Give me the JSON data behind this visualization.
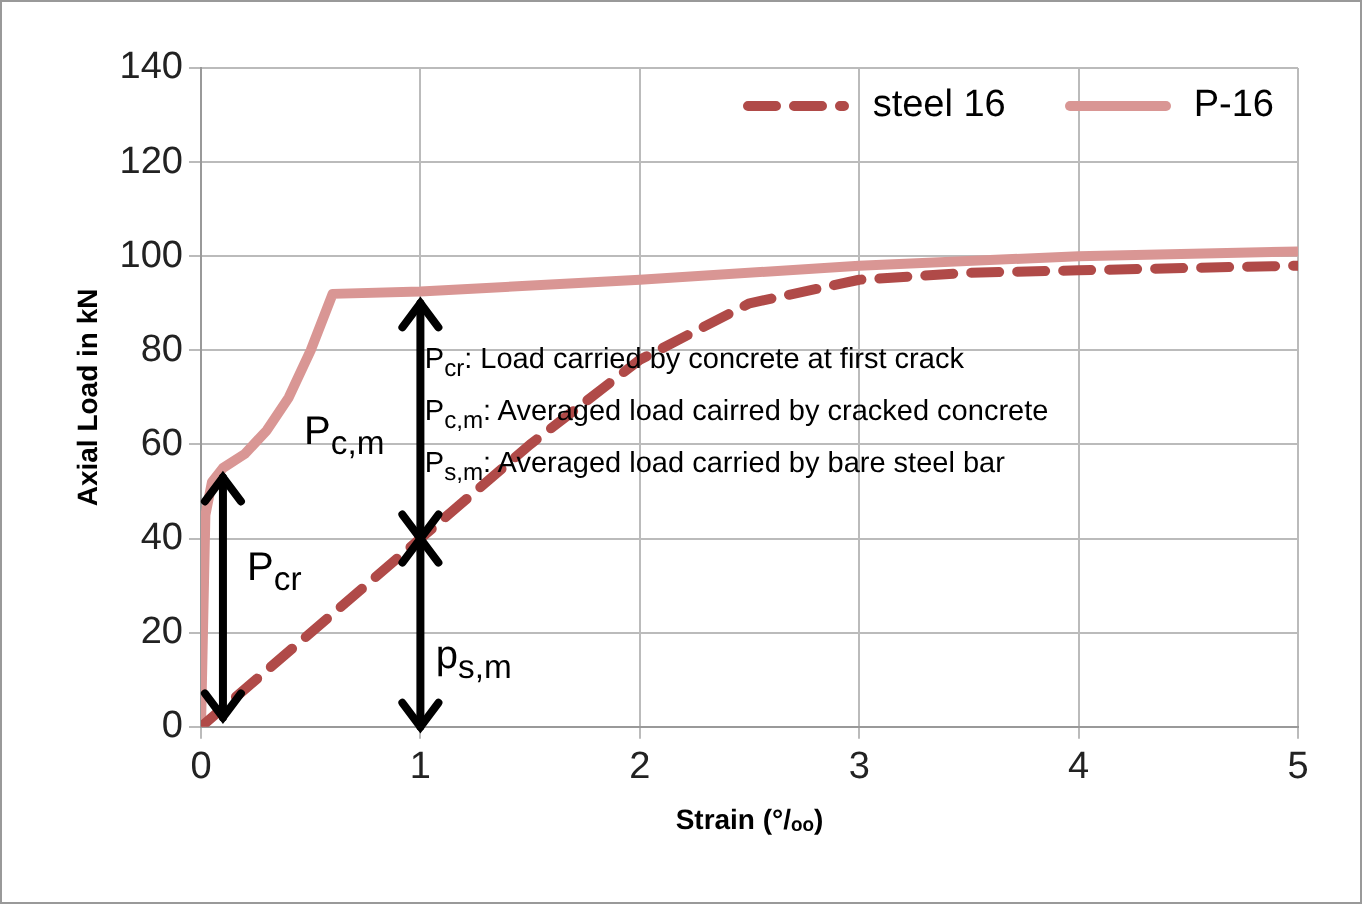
{
  "chart_data": {
    "type": "line",
    "xlabel": "Strain (°/ₒₒ)",
    "ylabel": "Axial Load in kN",
    "xlim": [
      0,
      5
    ],
    "xticks": [
      0,
      1,
      2,
      3,
      4,
      5
    ],
    "ylim": [
      0,
      140
    ],
    "yticks": [
      0,
      20,
      40,
      60,
      80,
      100,
      120,
      140
    ],
    "grid": true,
    "legend": "top right",
    "marker": "none",
    "series": [
      {
        "name": "steel 16",
        "color": "#b04a48",
        "line_style": "dashed",
        "x": [
          0,
          0.5,
          1,
          1.5,
          2,
          2.5,
          3,
          3.5,
          4,
          5
        ],
        "values": [
          0,
          20,
          40,
          60,
          78,
          90,
          95,
          96.5,
          97,
          98
        ]
      },
      {
        "name": "P-16",
        "color": "#d99694",
        "line_style": "solid",
        "x": [
          0,
          0.02,
          0.05,
          0.1,
          0.2,
          0.3,
          0.4,
          0.5,
          0.6,
          1,
          2,
          3,
          4,
          5
        ],
        "values": [
          0,
          45,
          52,
          55,
          58,
          63,
          70,
          80,
          92,
          92.5,
          95,
          98,
          100,
          101
        ]
      }
    ],
    "annotations": [
      {
        "text": "P$_{cr}$",
        "x": 0.1,
        "y": 53
      },
      "P$_{c,m}$",
      {
        "text": "p$_{s,m}$",
        "x": 1,
        "y": 40
      },
      "P$_{cr}$: Load carried by concrete at first crack",
      "P$_{c,m}$: Averaged load cairred by cracked concrete",
      "P$_{s,m}$: Averaged load carried by bare steel bar"
    ]
  }
}
